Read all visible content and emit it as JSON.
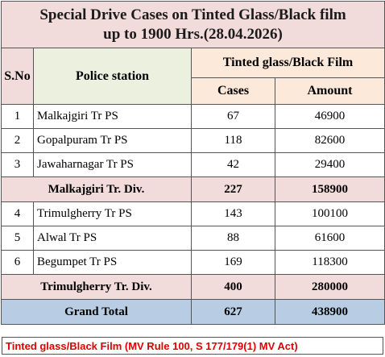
{
  "title_line1": "Special Drive Cases on Tinted Glass/Black film",
  "title_line2": "up to 1900 Hrs.(28.04.2026)",
  "headers": {
    "sno": "S.No",
    "police_station": "Police station",
    "group": "Tinted glass/Black Film",
    "cases": "Cases",
    "amount": "Amount"
  },
  "rows": [
    {
      "sno": "1",
      "station": "Malkajgiri Tr PS",
      "cases": "67",
      "amount": "46900"
    },
    {
      "sno": "2",
      "station": "Gopalpuram Tr PS",
      "cases": "118",
      "amount": "82600"
    },
    {
      "sno": "3",
      "station": "Jawaharnagar Tr PS",
      "cases": "42",
      "amount": "29400"
    },
    {
      "sno": "4",
      "station": "Trimulgherry Tr PS",
      "cases": "143",
      "amount": "100100"
    },
    {
      "sno": "5",
      "station": "Alwal Tr PS",
      "cases": "88",
      "amount": "61600"
    },
    {
      "sno": "6",
      "station": "Begumpet Tr PS",
      "cases": "169",
      "amount": "118300"
    }
  ],
  "subtotals": [
    {
      "label": "Malkajgiri Tr. Div.",
      "cases": "227",
      "amount": "158900"
    },
    {
      "label": "Trimulgherry Tr. Div.",
      "cases": "400",
      "amount": "280000"
    }
  ],
  "grand_total": {
    "label": "Grand Total",
    "cases": "627",
    "amount": "438900"
  },
  "footer_note": "Tinted glass/Black Film  (MV Rule 100, S 177/179(1) MV Act)",
  "colors": {
    "title_bg": "#f2dcdb",
    "station_header_bg": "#ebf1de",
    "group_header_bg": "#fde9d9",
    "subtotal_bg": "#f2dcdb",
    "grand_total_bg": "#b8cce4",
    "footer_text": "#e00000"
  }
}
